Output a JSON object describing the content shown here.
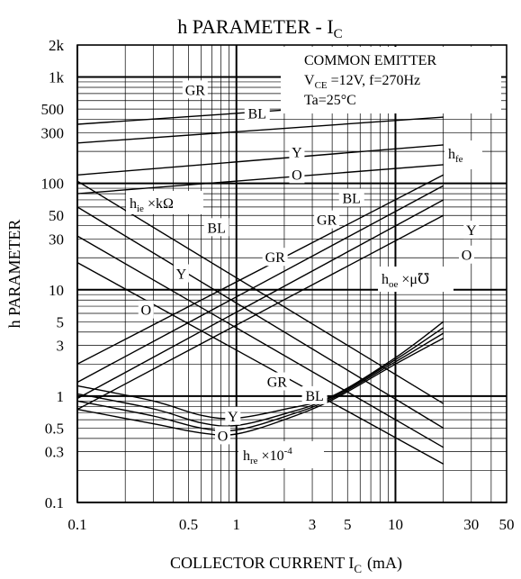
{
  "chart_data": {
    "type": "line",
    "title": "h PARAMETER - I",
    "title_sub": "C",
    "xlabel": "COLLECTOR CURRENT I",
    "xlabel_sub": "C",
    "xlabel_unit": "(mA)",
    "ylabel": "h PARAMETER",
    "xscale": "log",
    "yscale": "log",
    "xlim": [
      0.1,
      50
    ],
    "ylim": [
      0.1,
      2000
    ],
    "grid": true,
    "x_ticks": [
      {
        "v": 0.1,
        "label": "0.1"
      },
      {
        "v": 0.5,
        "label": "0.5"
      },
      {
        "v": 1,
        "label": "1"
      },
      {
        "v": 3,
        "label": "3"
      },
      {
        "v": 5,
        "label": "5"
      },
      {
        "v": 10,
        "label": "10"
      },
      {
        "v": 30,
        "label": "30"
      },
      {
        "v": 50,
        "label": "50"
      }
    ],
    "y_ticks": [
      {
        "v": 0.1,
        "label": "0.1"
      },
      {
        "v": 0.3,
        "label": "0.3"
      },
      {
        "v": 0.5,
        "label": "0.5"
      },
      {
        "v": 1,
        "label": "1"
      },
      {
        "v": 3,
        "label": "3"
      },
      {
        "v": 5,
        "label": "5"
      },
      {
        "v": 10,
        "label": "10"
      },
      {
        "v": 30,
        "label": "30"
      },
      {
        "v": 50,
        "label": "50"
      },
      {
        "v": 100,
        "label": "100"
      },
      {
        "v": 300,
        "label": "300"
      },
      {
        "v": 500,
        "label": "500"
      },
      {
        "v": 1000,
        "label": "1k"
      },
      {
        "v": 2000,
        "label": "2k"
      }
    ],
    "conditions": {
      "line1": "COMMON EMITTER",
      "line2_prefix": "V",
      "line2_sub": "CE",
      "line2_suffix": " =12V, f=270Hz",
      "line3": "Ta=25°C"
    },
    "parameters": {
      "hfe": {
        "main": "h",
        "sub": "fe",
        "suffix": ""
      },
      "hie": {
        "main": "h",
        "sub": "ie",
        "suffix": " ×kΩ"
      },
      "hoe": {
        "main": "h",
        "sub": "oe",
        "suffix": " ×μ℧"
      },
      "hre": {
        "main": "h",
        "sub": "re",
        "suffix": " ×10",
        "sup": "-4"
      }
    },
    "series": [
      {
        "name": "O",
        "param": "hfe",
        "x": [
          0.1,
          20
        ],
        "y": [
          80,
          150
        ]
      },
      {
        "name": "Y",
        "param": "hfe",
        "x": [
          0.1,
          20
        ],
        "y": [
          120,
          230
        ]
      },
      {
        "name": "GR",
        "param": "hfe",
        "x": [
          0.1,
          20
        ],
        "y": [
          240,
          420
        ]
      },
      {
        "name": "BL",
        "param": "hfe",
        "x": [
          0.1,
          20
        ],
        "y": [
          360,
          620
        ]
      },
      {
        "name": "BL",
        "param": "hie",
        "x": [
          0.1,
          20
        ],
        "y": [
          105,
          0.85
        ]
      },
      {
        "name": "GR",
        "param": "hie",
        "x": [
          0.1,
          20
        ],
        "y": [
          60,
          0.5
        ]
      },
      {
        "name": "Y",
        "param": "hie",
        "x": [
          0.1,
          20
        ],
        "y": [
          32,
          0.33
        ]
      },
      {
        "name": "O",
        "param": "hie",
        "x": [
          0.1,
          20
        ],
        "y": [
          18,
          0.23
        ]
      },
      {
        "name": "BL",
        "param": "hoe",
        "x": [
          0.1,
          20
        ],
        "y": [
          2.0,
          120
        ]
      },
      {
        "name": "GR",
        "param": "hoe",
        "x": [
          0.1,
          20
        ],
        "y": [
          1.35,
          95
        ]
      },
      {
        "name": "Y",
        "param": "hoe",
        "x": [
          0.1,
          20
        ],
        "y": [
          0.95,
          70
        ]
      },
      {
        "name": "O",
        "param": "hoe",
        "x": [
          0.1,
          20
        ],
        "y": [
          0.75,
          50
        ]
      },
      {
        "name": "BL",
        "param": "hre",
        "x": [
          0.1,
          0.3,
          0.6,
          1,
          2,
          4,
          10,
          20
        ],
        "y": [
          1.25,
          0.9,
          0.66,
          0.62,
          0.75,
          1.0,
          2.3,
          5.0
        ]
      },
      {
        "name": "GR",
        "param": "hre",
        "x": [
          0.1,
          0.3,
          0.6,
          1,
          2,
          4,
          10,
          20
        ],
        "y": [
          1.05,
          0.76,
          0.56,
          0.53,
          0.68,
          0.98,
          2.2,
          4.4
        ]
      },
      {
        "name": "Y",
        "param": "hre",
        "x": [
          0.1,
          0.3,
          0.6,
          1,
          2,
          4,
          10,
          20
        ],
        "y": [
          0.9,
          0.65,
          0.5,
          0.48,
          0.64,
          0.95,
          2.1,
          3.9
        ]
      },
      {
        "name": "O",
        "param": "hre",
        "x": [
          0.1,
          0.3,
          0.6,
          1,
          2,
          4,
          10,
          20
        ],
        "y": [
          0.75,
          0.55,
          0.45,
          0.44,
          0.6,
          0.92,
          2.0,
          3.5
        ]
      }
    ],
    "curve_labels": [
      {
        "text": "GR",
        "x": 0.55,
        "y": 750
      },
      {
        "text": "BL",
        "x": 1.35,
        "y": 450
      },
      {
        "text": "Y",
        "x": 2.4,
        "y": 195
      },
      {
        "text": "O",
        "x": 2.4,
        "y": 120
      },
      {
        "text": "BL",
        "x": 5.3,
        "y": 72
      },
      {
        "text": "GR",
        "x": 3.7,
        "y": 45
      },
      {
        "text": "Y",
        "x": 30,
        "y": 36
      },
      {
        "text": "O",
        "x": 28,
        "y": 21
      },
      {
        "text": "BL",
        "x": 0.75,
        "y": 38
      },
      {
        "text": "GR",
        "x": 1.75,
        "y": 20
      },
      {
        "text": "Y",
        "x": 0.45,
        "y": 14
      },
      {
        "text": "O",
        "x": 0.27,
        "y": 6.4
      },
      {
        "text": "GR",
        "x": 1.8,
        "y": 1.35
      },
      {
        "text": "BL",
        "x": 3.1,
        "y": 1.0
      },
      {
        "text": "Y",
        "x": 0.95,
        "y": 0.64
      },
      {
        "text": "O",
        "x": 0.82,
        "y": 0.42
      }
    ]
  }
}
